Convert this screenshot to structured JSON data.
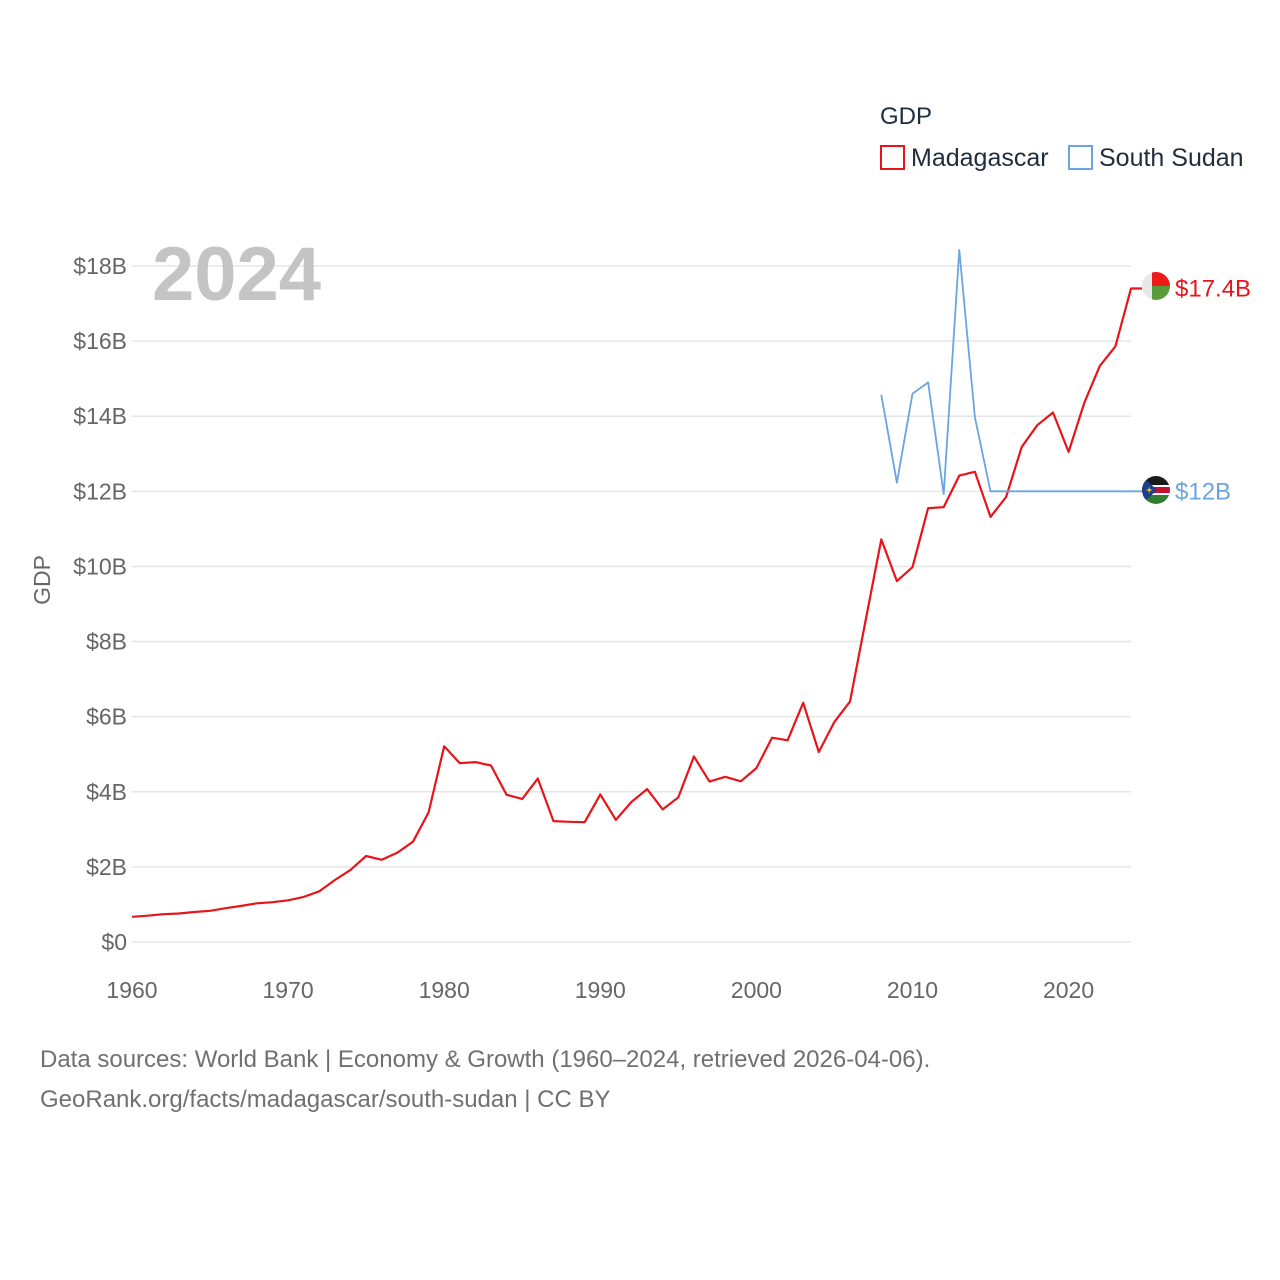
{
  "chart_data": {
    "type": "line",
    "title": "GDP",
    "ylabel": "GDP",
    "xlabel": "",
    "year_label": "2024",
    "xlim": [
      1960,
      2024
    ],
    "ylim": [
      0,
      18
    ],
    "y_unit": "billion USD",
    "x_ticks": [
      1960,
      1970,
      1980,
      1990,
      2000,
      2010,
      2020
    ],
    "x_tick_labels": [
      "1960",
      "1970",
      "1980",
      "1990",
      "2000",
      "2010",
      "2020"
    ],
    "y_ticks": [
      0,
      2,
      4,
      6,
      8,
      10,
      12,
      14,
      16,
      18
    ],
    "y_tick_labels": [
      "$0",
      "$2B",
      "$4B",
      "$6B",
      "$8B",
      "$10B",
      "$12B",
      "$14B",
      "$16B",
      "$18B"
    ],
    "legend": {
      "title": "GDP",
      "position": "top-right"
    },
    "series": [
      {
        "name": "Madagascar",
        "color": "#e8141b",
        "end_label": "$17.4B",
        "icon": "madagascar-flag-icon",
        "x": [
          1960,
          1961,
          1962,
          1963,
          1964,
          1965,
          1966,
          1967,
          1968,
          1969,
          1970,
          1971,
          1972,
          1973,
          1974,
          1975,
          1976,
          1977,
          1978,
          1979,
          1980,
          1981,
          1982,
          1983,
          1984,
          1985,
          1986,
          1987,
          1988,
          1989,
          1990,
          1991,
          1992,
          1993,
          1994,
          1995,
          1996,
          1997,
          1998,
          1999,
          2000,
          2001,
          2002,
          2003,
          2004,
          2005,
          2006,
          2007,
          2008,
          2009,
          2010,
          2011,
          2012,
          2013,
          2014,
          2015,
          2016,
          2017,
          2018,
          2019,
          2020,
          2021,
          2022,
          2023,
          2024
        ],
        "values": [
          0.67,
          0.7,
          0.74,
          0.76,
          0.8,
          0.83,
          0.9,
          0.96,
          1.03,
          1.06,
          1.11,
          1.2,
          1.35,
          1.65,
          1.92,
          2.29,
          2.19,
          2.38,
          2.67,
          3.45,
          5.21,
          4.76,
          4.79,
          4.7,
          3.92,
          3.81,
          4.35,
          3.22,
          3.2,
          3.19,
          3.93,
          3.25,
          3.73,
          4.07,
          3.53,
          3.85,
          4.94,
          4.27,
          4.4,
          4.28,
          4.63,
          5.44,
          5.37,
          6.37,
          5.06,
          5.86,
          6.4,
          8.56,
          10.72,
          9.61,
          9.98,
          11.55,
          11.58,
          12.42,
          12.52,
          11.32,
          11.85,
          13.18,
          13.76,
          14.1,
          13.05,
          14.35,
          15.34,
          15.86,
          17.4
        ]
      },
      {
        "name": "South Sudan",
        "color": "#6aa5e0",
        "end_label": "$12B",
        "icon": "south-sudan-flag-icon",
        "x": [
          2008,
          2009,
          2010,
          2011,
          2012,
          2013,
          2014,
          2015,
          2024
        ],
        "values": [
          14.57,
          12.23,
          14.6,
          14.9,
          11.93,
          18.43,
          13.97,
          12.0,
          12.0
        ]
      }
    ]
  },
  "source": {
    "line1": "Data sources: World Bank | Economy & Growth (1960–2024, retrieved 2026-04-06).",
    "line2": "GeoRank.org/facts/madagascar/south-sudan | CC BY"
  }
}
